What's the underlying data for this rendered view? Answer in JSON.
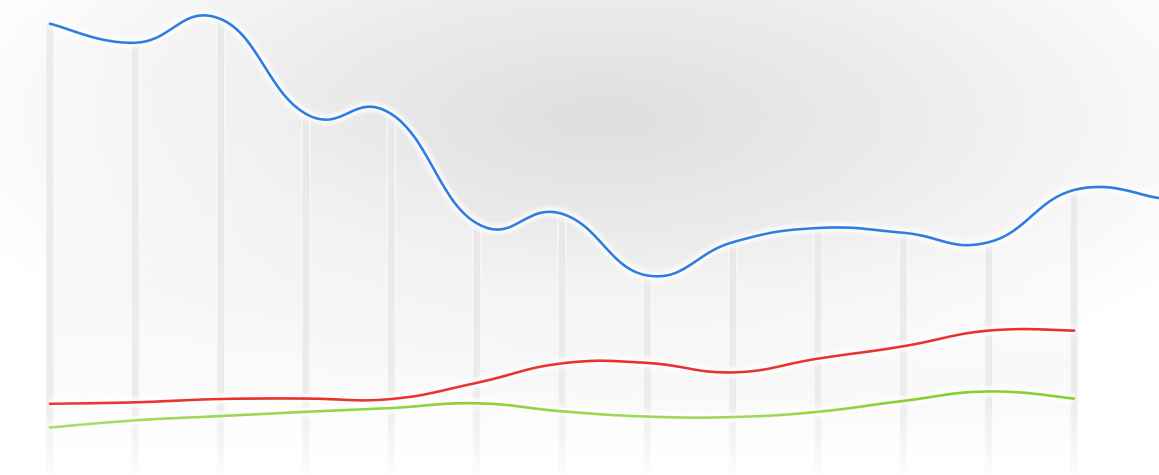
{
  "chart_data": {
    "type": "line",
    "title": "",
    "xlabel": "",
    "ylabel": "",
    "x": [
      1,
      2,
      3,
      4,
      5,
      6,
      7,
      8,
      9,
      10,
      11,
      12,
      13
    ],
    "xlim": [
      1,
      13
    ],
    "ylim": [
      0,
      100
    ],
    "grid": false,
    "legend": "none",
    "series": [
      {
        "values": [
          95,
          91,
          96,
          76,
          76,
          53,
          55,
          42,
          49,
          52,
          51,
          49,
          60
        ],
        "color": "#2f7de1"
      },
      {
        "values": [
          15,
          15.3,
          16,
          16.1,
          16,
          19.4,
          23.5,
          23.6,
          21.6,
          24.5,
          27.1,
          30.4,
          30.4
        ],
        "color": "#e8322e"
      },
      {
        "values": [
          10,
          11.5,
          12.4,
          13.3,
          14.1,
          15.1,
          13.4,
          12.3,
          12.2,
          13.3,
          15.6,
          17.6,
          16.1
        ],
        "color": "#86d02e"
      }
    ]
  }
}
